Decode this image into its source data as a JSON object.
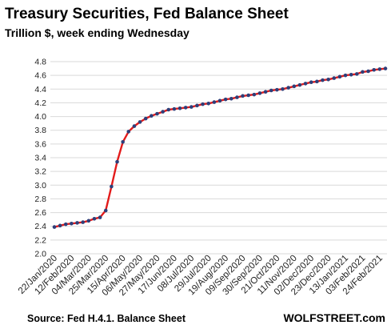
{
  "chart_data": {
    "type": "line",
    "title": "Treasury  Securities,  Fed Balance  Sheet",
    "subtitle": "Trillion $, week ending Wednesday",
    "source": "Source: Fed H.4.1. Balance Sheet",
    "brand": "WOLFSTREET.com",
    "ylim": [
      2.0,
      4.8
    ],
    "yticks": [
      "2.0",
      "2.2",
      "2.4",
      "2.6",
      "2.8",
      "3.0",
      "3.2",
      "3.4",
      "3.6",
      "3.8",
      "4.0",
      "4.2",
      "4.4",
      "4.6",
      "4.8"
    ],
    "grid": true,
    "xtick_labels": [
      "22/Jan/2020",
      "12/Feb/2020",
      "04/Mar/2020",
      "25/Mar/2020",
      "15/Apr/2020",
      "06/May/2020",
      "27/May/2020",
      "17/Jun/2020",
      "08/Jul/2020",
      "29/Jul/2020",
      "19/Aug/2020",
      "09/Sep/2020",
      "30/Sep/2020",
      "21/Oct/2020",
      "11/Nov/2020",
      "02/Dec/2020",
      "23/Dec/2020",
      "13/Jan/2021",
      "03/Feb/2021",
      "24/Feb/2021"
    ],
    "series": [
      {
        "line_color": "#e31b1b",
        "marker_color": "#2e3f7a",
        "x": [
          "22/Jan/2020",
          "29/Jan/2020",
          "05/Feb/2020",
          "12/Feb/2020",
          "19/Feb/2020",
          "26/Feb/2020",
          "04/Mar/2020",
          "11/Mar/2020",
          "18/Mar/2020",
          "25/Mar/2020",
          "01/Apr/2020",
          "08/Apr/2020",
          "15/Apr/2020",
          "22/Apr/2020",
          "29/Apr/2020",
          "06/May/2020",
          "13/May/2020",
          "20/May/2020",
          "27/May/2020",
          "03/Jun/2020",
          "10/Jun/2020",
          "17/Jun/2020",
          "24/Jun/2020",
          "01/Jul/2020",
          "08/Jul/2020",
          "15/Jul/2020",
          "22/Jul/2020",
          "29/Jul/2020",
          "05/Aug/2020",
          "12/Aug/2020",
          "19/Aug/2020",
          "26/Aug/2020",
          "02/Sep/2020",
          "09/Sep/2020",
          "16/Sep/2020",
          "23/Sep/2020",
          "30/Sep/2020",
          "07/Oct/2020",
          "14/Oct/2020",
          "21/Oct/2020",
          "28/Oct/2020",
          "04/Nov/2020",
          "11/Nov/2020",
          "18/Nov/2020",
          "25/Nov/2020",
          "02/Dec/2020",
          "09/Dec/2020",
          "16/Dec/2020",
          "23/Dec/2020",
          "30/Dec/2020",
          "06/Jan/2021",
          "13/Jan/2021",
          "20/Jan/2021",
          "27/Jan/2021",
          "03/Feb/2021",
          "10/Feb/2021",
          "17/Feb/2021",
          "24/Feb/2021",
          "03/Mar/2021"
        ],
        "values": [
          2.39,
          2.41,
          2.43,
          2.44,
          2.45,
          2.46,
          2.48,
          2.51,
          2.53,
          2.63,
          2.98,
          3.34,
          3.63,
          3.78,
          3.86,
          3.92,
          3.97,
          4.01,
          4.04,
          4.07,
          4.1,
          4.11,
          4.12,
          4.13,
          4.14,
          4.16,
          4.18,
          4.19,
          4.21,
          4.23,
          4.25,
          4.26,
          4.28,
          4.3,
          4.31,
          4.32,
          4.34,
          4.36,
          4.38,
          4.39,
          4.4,
          4.42,
          4.44,
          4.46,
          4.48,
          4.5,
          4.51,
          4.53,
          4.54,
          4.56,
          4.58,
          4.6,
          4.61,
          4.62,
          4.65,
          4.66,
          4.68,
          4.69,
          4.7
        ]
      }
    ]
  }
}
